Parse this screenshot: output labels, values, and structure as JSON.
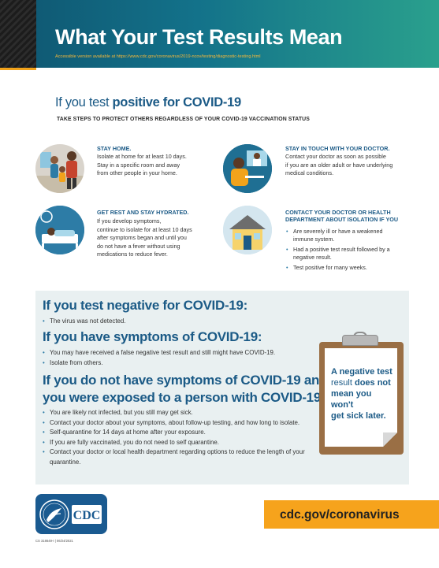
{
  "header": {
    "title": "What Your Test Results Mean",
    "accessible_note": "Accessible version available at https://www.cdc.gov/coronavirus/2019-ncov/testing/diagnostic-testing.html"
  },
  "positive": {
    "title_prefix": "If you test ",
    "title_em": "positive",
    "title_suffix": " for COVID-19",
    "subtitle": "TAKE STEPS TO PROTECT OTHERS REGARDLESS OF YOUR COVID-19 VACCINATION STATUS",
    "stay_home": {
      "heading": "STAY HOME.",
      "lines": [
        "Isolate at home for at least 10 days.",
        "Stay in a specific room and away",
        "from other people in your home."
      ]
    },
    "stay_in_touch": {
      "heading": "STAY IN TOUCH WITH YOUR DOCTOR.",
      "lines": [
        "Contact your doctor as soon as possible",
        "if you are an older adult or have underlying",
        "medical conditions."
      ]
    },
    "rest": {
      "heading": "GET REST AND STAY HYDRATED.",
      "lines": [
        "If you develop symptoms,",
        "continue to isolate for at least 10 days",
        "after symptoms began and until you",
        "do not have a fever without using",
        "medications to reduce fever."
      ]
    },
    "contact_doctor": {
      "heading_1": "CONTACT YOUR DOCTOR OR HEALTH",
      "heading_2": "DEPARTMENT ABOUT ISOLATION IF YOU",
      "items": [
        "Are severely ill or have a weakened immune system.",
        "Had a positive test result followed by a negative result.",
        "Test positive for many weeks."
      ]
    }
  },
  "negative": {
    "title_prefix": "If you test ",
    "title_em": "negative",
    "title_suffix": " for COVID-19:",
    "items": [
      "The virus was not detected."
    ]
  },
  "symptoms": {
    "title_prefix": "If you have ",
    "title_em": "symptoms",
    "title_suffix": " of COVID-19:",
    "items": [
      "You may have received a false negative test result and still might have COVID-19.",
      "Isolate from others."
    ]
  },
  "no_symptoms": {
    "title_line1_prefix": "If you ",
    "title_line1_em": "do not",
    "title_line1_suffix": " have symptoms of COVID-19 and",
    "title_line2": "you were exposed to a person with COVID-19:",
    "items": [
      "You are likely not infected, but you still may get sick.",
      "Contact your doctor about your symptoms, about follow-up testing, and how long to isolate.",
      "Self-quarantine for 14 days at home after your exposure.",
      "If you are fully vaccinated, you do not need to self quarantine.",
      "Contact your doctor or local health department regarding options to reduce the length of your quarantine."
    ]
  },
  "clipboard": {
    "line1": "A negative test",
    "line2_prefix": "result ",
    "line2_em": "does not",
    "line3": "mean you won't",
    "line4": "get sick later."
  },
  "footer": {
    "logo_text": "CDC",
    "doc_code": "CS 318649-I  |  06/24/2021",
    "url": "cdc.gov/coronavirus"
  },
  "colors": {
    "heading_blue": "#1b5a86",
    "accent_orange": "#f6a31c",
    "box_gray": "#e9f0f1"
  }
}
